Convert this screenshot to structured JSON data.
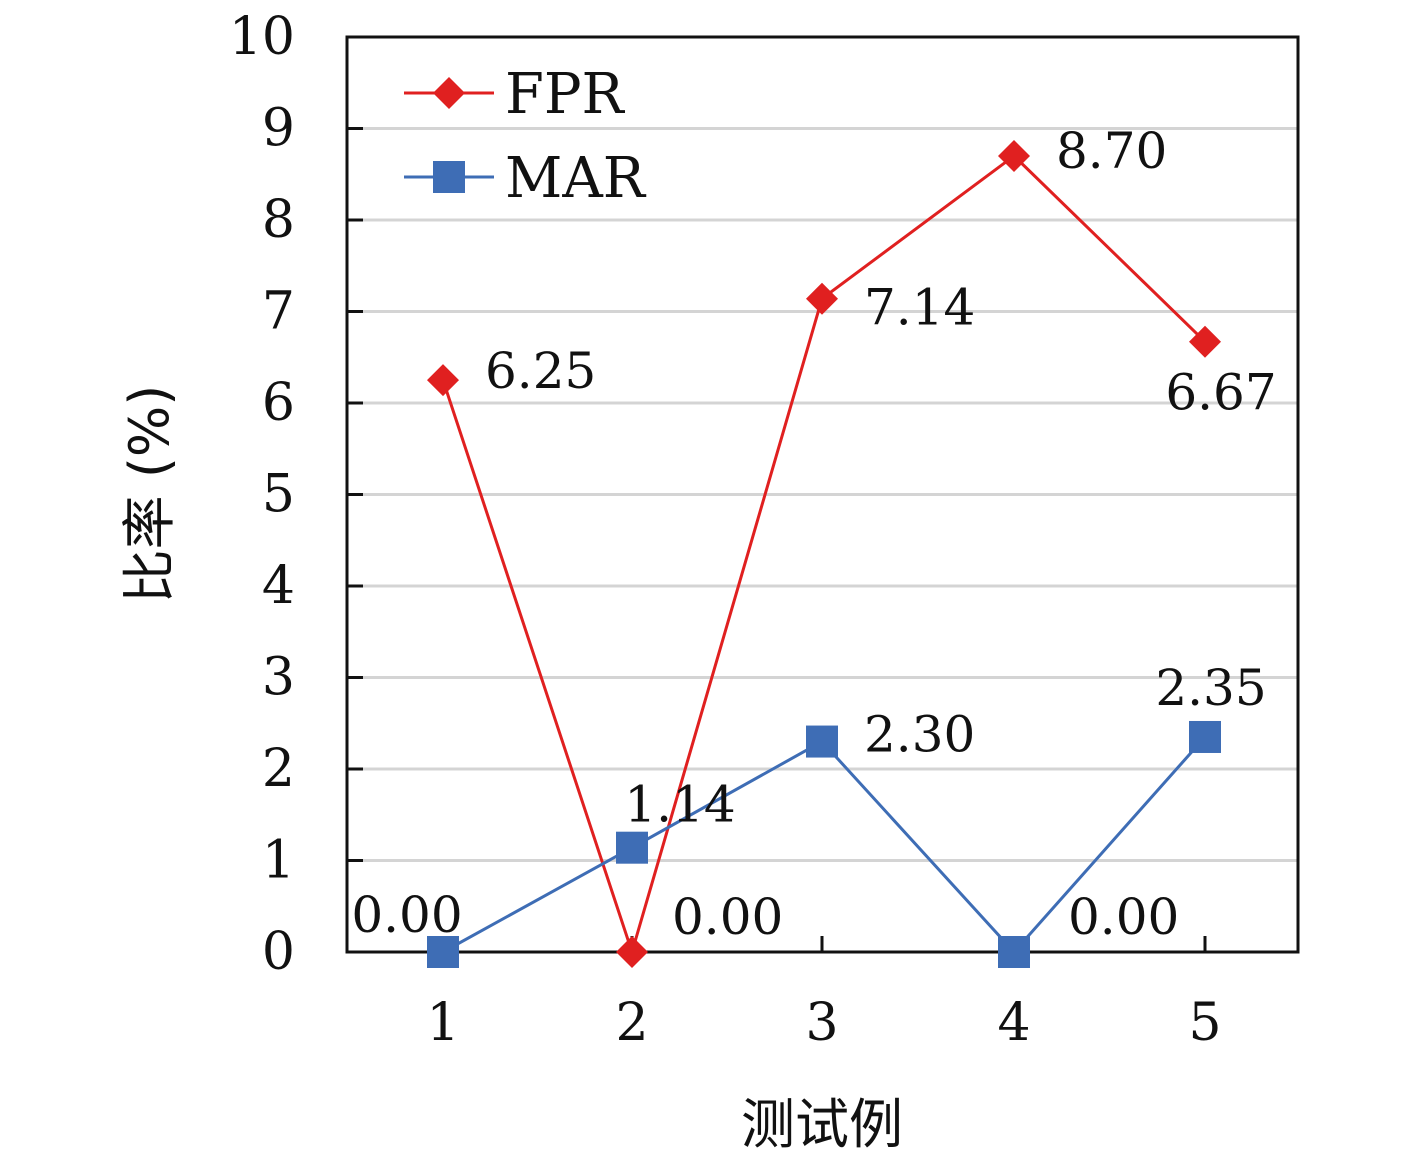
{
  "chart_data": {
    "type": "line",
    "title": "",
    "xlabel": "测试例",
    "ylabel": "比率 (%)",
    "categories": [
      "1",
      "2",
      "3",
      "4",
      "5"
    ],
    "ylim": [
      0,
      10
    ],
    "yticks": [
      "0",
      "1",
      "2",
      "3",
      "4",
      "5",
      "6",
      "7",
      "8",
      "9",
      "10"
    ],
    "grid": "horizontal",
    "legend_position": "top-left",
    "series": [
      {
        "name": "FPR",
        "color": "#e02020",
        "marker": "diamond",
        "values": [
          6.25,
          0.0,
          7.14,
          8.7,
          6.67
        ],
        "labels": [
          "6.25",
          "0.00",
          "7.14",
          "8.70",
          "6.67"
        ]
      },
      {
        "name": "MAR",
        "color": "#3e6db5",
        "marker": "square",
        "values": [
          0.0,
          1.14,
          2.3,
          0.0,
          2.35
        ],
        "labels": [
          "0.00",
          "1.14",
          "2.30",
          "0.00",
          "2.35"
        ]
      }
    ]
  }
}
